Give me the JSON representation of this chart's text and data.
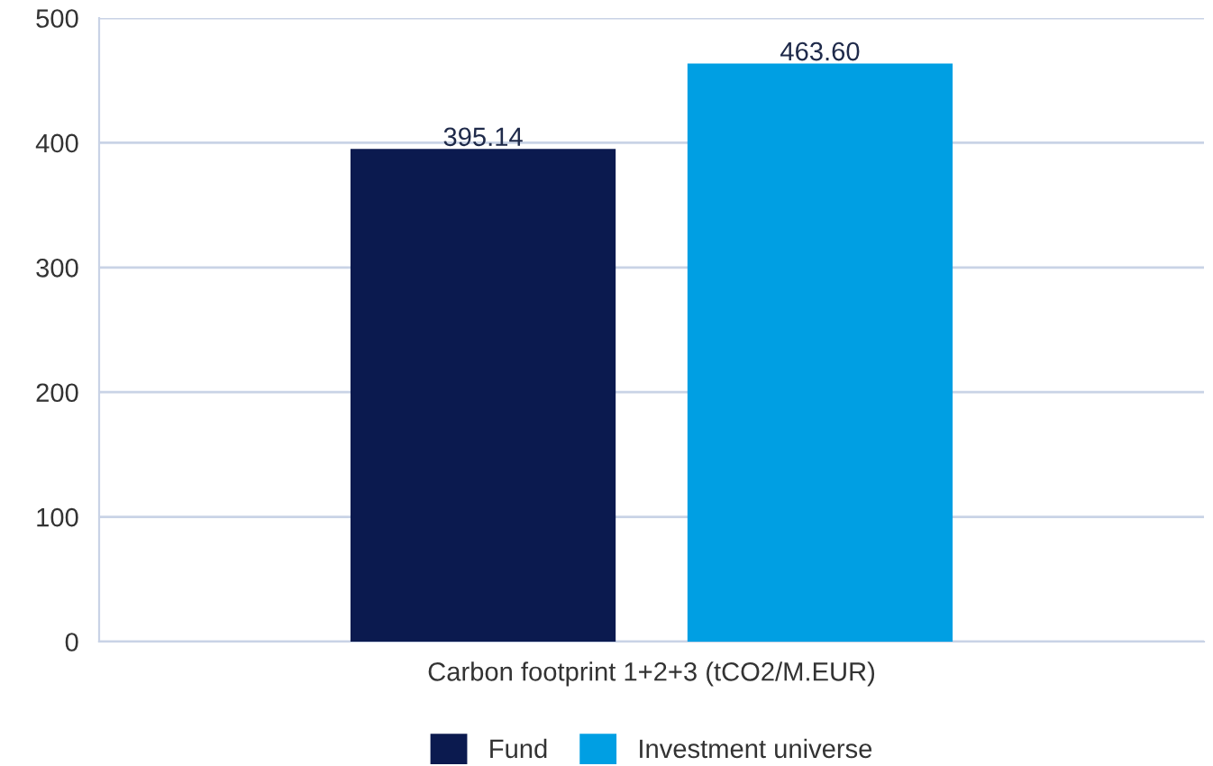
{
  "chart_data": {
    "type": "bar",
    "categories": [
      "Carbon footprint 1+2+3 (tCO2/M.EUR)"
    ],
    "series": [
      {
        "name": "Fund",
        "color": "#0b1a4f",
        "values": [
          395.14
        ]
      },
      {
        "name": "Investment universe",
        "color": "#009fe3",
        "values": [
          463.6
        ]
      }
    ],
    "value_labels": [
      [
        "395.14"
      ],
      [
        "463.60"
      ]
    ],
    "ylim": [
      0,
      500
    ],
    "yticks": [
      0,
      100,
      200,
      300,
      400,
      500
    ],
    "grid": "y",
    "legend": "bottom"
  }
}
